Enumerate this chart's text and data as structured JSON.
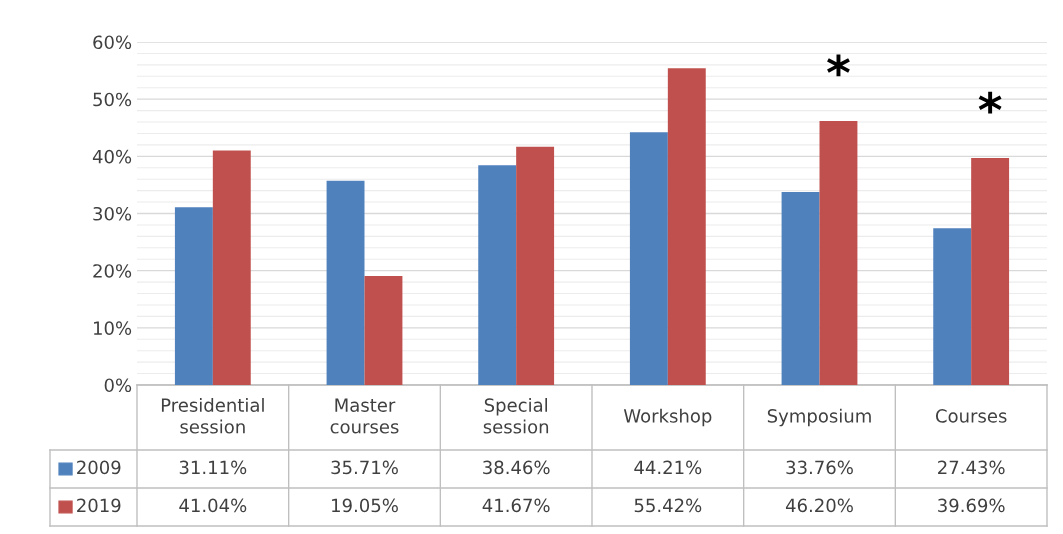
{
  "chart_data": {
    "type": "bar",
    "categories": [
      "Presidential\nsession",
      "Master\ncourses",
      "Special\nsession",
      "Workshop",
      "Symposium",
      "Courses"
    ],
    "series": [
      {
        "name": "2009",
        "color": "#4f81bd",
        "values": [
          31.11,
          35.71,
          38.46,
          44.21,
          33.76,
          27.43
        ],
        "value_labels": [
          "31.11%",
          "35.71%",
          "38.46%",
          "44.21%",
          "33.76%",
          "27.43%"
        ]
      },
      {
        "name": "2019",
        "color": "#c0504d",
        "values": [
          41.04,
          19.05,
          41.67,
          55.42,
          46.2,
          39.69
        ],
        "value_labels": [
          "41.04%",
          "19.05%",
          "41.67%",
          "55.42%",
          "46.20%",
          "39.69%"
        ]
      }
    ],
    "ylim": [
      0,
      60
    ],
    "yticks": [
      {
        "value": 0,
        "label": "0%"
      },
      {
        "value": 10,
        "label": "10%"
      },
      {
        "value": 20,
        "label": "20%"
      },
      {
        "value": 30,
        "label": "30%"
      },
      {
        "value": 40,
        "label": "40%"
      },
      {
        "value": 50,
        "label": "50%"
      },
      {
        "value": 60,
        "label": "60%"
      }
    ],
    "grid": "y",
    "legend": "bottom left",
    "annotations": [
      {
        "text": "*",
        "x": "Symposium",
        "y": 46.2
      },
      {
        "text": "*",
        "x": "Courses",
        "y": 39.69
      }
    ]
  }
}
